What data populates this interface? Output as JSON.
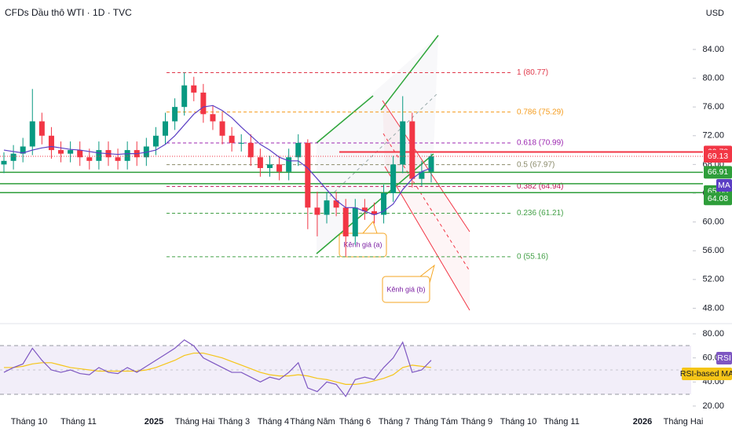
{
  "chart_data": [
    {
      "type": "candlestick",
      "title": "CFDs Dầu thô WTI · 1D · TVC",
      "currency": "USD",
      "categories": [
        null,
        null,
        null,
        null,
        null,
        null,
        null,
        null,
        null,
        null,
        null,
        null,
        null,
        null,
        null,
        null,
        null,
        null,
        null,
        null,
        null,
        null,
        null,
        null,
        null,
        null,
        null,
        null,
        null,
        null,
        null,
        null,
        null,
        null,
        null,
        null,
        null,
        null,
        null,
        null,
        null,
        null,
        null,
        null,
        null,
        null
      ],
      "open": [
        68,
        68.5,
        69.5,
        70.5,
        74,
        72,
        70,
        69.5,
        70,
        69,
        68.5,
        70,
        69,
        68.5,
        70,
        69,
        70.5,
        72,
        74,
        76,
        79,
        78,
        75,
        74,
        72,
        71,
        71,
        69,
        67.5,
        68,
        67,
        69,
        71,
        62,
        61,
        63,
        62,
        58,
        62,
        61.5,
        61,
        64,
        68,
        74,
        66,
        67
      ],
      "high": [
        69.7,
        70.7,
        71.7,
        78.5,
        75.2,
        73.2,
        71.2,
        71.2,
        71.2,
        70.2,
        71.2,
        71.2,
        70.2,
        71.2,
        71.2,
        71.7,
        73.2,
        75.2,
        77.2,
        80.8,
        80.2,
        79.2,
        76.2,
        75.2,
        73.2,
        72.2,
        72.2,
        70.2,
        69.2,
        69.2,
        70.2,
        72.2,
        71.5,
        64.2,
        64.2,
        64.2,
        63.2,
        63.2,
        63.2,
        62.7,
        65.2,
        69.2,
        77.5,
        75.2,
        68.5,
        69.5
      ],
      "low": [
        66.8,
        67.3,
        68.3,
        69.3,
        70.8,
        68.8,
        68.3,
        68.3,
        67.8,
        67.3,
        67.3,
        67.8,
        67.3,
        67.3,
        67.8,
        67.8,
        69.3,
        70.8,
        72.8,
        74.8,
        76.8,
        73.8,
        72.8,
        70.8,
        69.8,
        69.8,
        67.8,
        66.3,
        66.3,
        65.8,
        65.8,
        67.8,
        59,
        58,
        59.8,
        60.8,
        55.2,
        56.8,
        60.3,
        59.8,
        59.8,
        62.8,
        66.8,
        64.8,
        65,
        65.5
      ],
      "close": [
        68.5,
        69.5,
        70.5,
        74,
        72,
        70,
        69.5,
        70,
        69,
        68.5,
        70,
        69,
        68.5,
        70,
        69,
        70.5,
        72,
        74,
        76,
        79,
        78,
        75,
        74,
        72,
        71,
        71,
        69,
        67.5,
        68,
        67,
        69,
        71,
        62,
        61,
        63,
        62,
        58,
        62,
        61.5,
        61,
        64,
        68,
        74,
        66,
        67,
        69.13
      ],
      "up_color": "#089981",
      "down_color": "#f23645",
      "series": [
        {
          "name": "MA",
          "color": "#5b3fc4",
          "values": [
            70,
            69.8,
            69.6,
            70,
            70.3,
            70.5,
            70.3,
            70.1,
            70,
            69.8,
            69.6,
            69.5,
            69.4,
            69.5,
            69.5,
            69.7,
            70,
            70.8,
            72,
            73.5,
            75,
            76,
            76.2,
            75.5,
            74.5,
            73.2,
            72,
            70.8,
            70,
            69,
            68.5,
            68.5,
            67.5,
            66,
            64.5,
            63,
            62,
            62,
            61.5,
            61,
            61.5,
            62.5,
            64.5,
            66,
            67,
            67.5
          ]
        }
      ],
      "ylim": [
        46.3,
        87.6
      ],
      "yticks": [
        {
          "value": 84,
          "label": "84.00"
        },
        {
          "value": 80,
          "label": "80.00"
        },
        {
          "value": 76,
          "label": "76.00"
        },
        {
          "value": 72,
          "label": "72.00"
        },
        {
          "value": 68,
          "label": "68.00"
        },
        {
          "value": 64,
          "label": "64.00"
        },
        {
          "value": 60,
          "label": "60.00"
        },
        {
          "value": 56,
          "label": "56.00"
        },
        {
          "value": 52,
          "label": "52.00"
        },
        {
          "value": 48,
          "label": "48.00"
        }
      ],
      "xticks": [
        "Tháng 10",
        "Tháng 11",
        "2025",
        "Tháng Hai",
        "Tháng 3",
        "Tháng 4",
        "Tháng Năm",
        "Tháng 6",
        "Tháng 7",
        "Tháng Tám",
        "Tháng 9",
        "Tháng 10",
        "Tháng 11",
        "2026",
        "Tháng Hai"
      ],
      "fib_levels": [
        {
          "value": 80.77,
          "label": "1 (80.77)",
          "color": "#e0384a"
        },
        {
          "value": 75.29,
          "label": "0.786 (75.29)",
          "color": "#f59b1b"
        },
        {
          "value": 70.99,
          "label": "0.618 (70.99)",
          "color": "#9c27b0"
        },
        {
          "value": 67.97,
          "label": "0.5 (67.97)",
          "color": "#8a8a6a"
        },
        {
          "value": 64.94,
          "label": "0.382 (64.94)",
          "color": "#c2185b"
        },
        {
          "value": 61.21,
          "label": "0.236 (61.21)",
          "color": "#43a047"
        },
        {
          "value": 55.16,
          "label": "0 (55.16)",
          "color": "#43a047"
        }
      ],
      "levels": [
        {
          "value": 69.73,
          "color": "#f23645"
        },
        {
          "value": 66.91,
          "color": "#2e9e3a"
        },
        {
          "value": 65.33,
          "color": "#2e9e3a"
        },
        {
          "value": 64.08,
          "color": "#2e9e3a"
        }
      ],
      "annotations": [
        "Kênh giá (a)",
        "Kênh giá (b)"
      ]
    },
    {
      "type": "line",
      "series": [
        {
          "name": "RSI",
          "color": "#7e57c2",
          "values": [
            48,
            52,
            55,
            68,
            58,
            50,
            48,
            50,
            47,
            46,
            52,
            48,
            47,
            52,
            48,
            53,
            58,
            63,
            68,
            75,
            70,
            60,
            56,
            52,
            48,
            48,
            44,
            40,
            44,
            42,
            48,
            56,
            35,
            32,
            40,
            38,
            28,
            42,
            44,
            42,
            52,
            60,
            73,
            48,
            50,
            58
          ]
        },
        {
          "name": "RSI-based MA",
          "color": "#f5c518",
          "values": [
            52,
            52,
            53,
            55,
            56,
            56,
            54,
            52,
            51,
            50,
            49,
            49,
            49,
            49,
            49,
            50,
            52,
            55,
            58,
            62,
            64,
            64,
            62,
            60,
            57,
            54,
            51,
            48,
            46,
            45,
            45,
            46,
            45,
            43,
            42,
            40,
            38,
            38,
            39,
            41,
            43,
            46,
            52,
            54,
            53,
            52
          ]
        }
      ],
      "ylim": [
        16.7,
        87.2
      ],
      "yticks": [
        {
          "value": 80,
          "label": "80.00"
        },
        {
          "value": 60,
          "label": "60.00"
        },
        {
          "value": 40,
          "label": "40.00"
        },
        {
          "value": 20,
          "label": "20.00"
        }
      ]
    }
  ]
}
